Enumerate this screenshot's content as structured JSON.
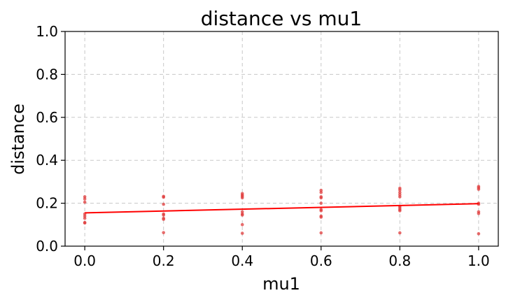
{
  "chart_data": {
    "type": "scatter",
    "title": "distance vs mu1",
    "xlabel": "mu1",
    "ylabel": "distance",
    "xlim": [
      -0.05,
      1.05
    ],
    "ylim": [
      0.0,
      1.0
    ],
    "grid": true,
    "x_ticks": [
      "0.0",
      "0.2",
      "0.4",
      "0.6",
      "0.8",
      "1.0"
    ],
    "y_ticks": [
      "0.0",
      "0.2",
      "0.4",
      "0.6",
      "0.8",
      "1.0"
    ],
    "colors": {
      "points": "#e03c3c",
      "fit": "#ff0000"
    },
    "points": [
      {
        "x": 0.0,
        "y": 0.23
      },
      {
        "x": 0.0,
        "y": 0.22
      },
      {
        "x": 0.0,
        "y": 0.205
      },
      {
        "x": 0.0,
        "y": 0.15
      },
      {
        "x": 0.0,
        "y": 0.14
      },
      {
        "x": 0.0,
        "y": 0.13
      },
      {
        "x": 0.0,
        "y": 0.11
      },
      {
        "x": 0.0,
        "y": 0.108
      },
      {
        "x": 0.2,
        "y": 0.232
      },
      {
        "x": 0.2,
        "y": 0.228
      },
      {
        "x": 0.2,
        "y": 0.195
      },
      {
        "x": 0.2,
        "y": 0.15
      },
      {
        "x": 0.2,
        "y": 0.145
      },
      {
        "x": 0.2,
        "y": 0.13
      },
      {
        "x": 0.2,
        "y": 0.125
      },
      {
        "x": 0.2,
        "y": 0.063
      },
      {
        "x": 0.4,
        "y": 0.245
      },
      {
        "x": 0.4,
        "y": 0.238
      },
      {
        "x": 0.4,
        "y": 0.232
      },
      {
        "x": 0.4,
        "y": 0.225
      },
      {
        "x": 0.4,
        "y": 0.16
      },
      {
        "x": 0.4,
        "y": 0.15
      },
      {
        "x": 0.4,
        "y": 0.145
      },
      {
        "x": 0.4,
        "y": 0.1
      },
      {
        "x": 0.4,
        "y": 0.06
      },
      {
        "x": 0.6,
        "y": 0.26
      },
      {
        "x": 0.6,
        "y": 0.25
      },
      {
        "x": 0.6,
        "y": 0.23
      },
      {
        "x": 0.6,
        "y": 0.225
      },
      {
        "x": 0.6,
        "y": 0.2
      },
      {
        "x": 0.6,
        "y": 0.17
      },
      {
        "x": 0.6,
        "y": 0.165
      },
      {
        "x": 0.6,
        "y": 0.14
      },
      {
        "x": 0.6,
        "y": 0.135
      },
      {
        "x": 0.6,
        "y": 0.062
      },
      {
        "x": 0.8,
        "y": 0.27
      },
      {
        "x": 0.8,
        "y": 0.262
      },
      {
        "x": 0.8,
        "y": 0.25
      },
      {
        "x": 0.8,
        "y": 0.24
      },
      {
        "x": 0.8,
        "y": 0.23
      },
      {
        "x": 0.8,
        "y": 0.185
      },
      {
        "x": 0.8,
        "y": 0.178
      },
      {
        "x": 0.8,
        "y": 0.17
      },
      {
        "x": 0.8,
        "y": 0.165
      },
      {
        "x": 0.8,
        "y": 0.062
      },
      {
        "x": 1.0,
        "y": 0.278
      },
      {
        "x": 1.0,
        "y": 0.272
      },
      {
        "x": 1.0,
        "y": 0.265
      },
      {
        "x": 1.0,
        "y": 0.2
      },
      {
        "x": 1.0,
        "y": 0.195
      },
      {
        "x": 1.0,
        "y": 0.16
      },
      {
        "x": 1.0,
        "y": 0.152
      },
      {
        "x": 1.0,
        "y": 0.058
      }
    ],
    "fit_line": {
      "x": [
        0.0,
        1.0
      ],
      "y": [
        0.155,
        0.198
      ]
    }
  }
}
